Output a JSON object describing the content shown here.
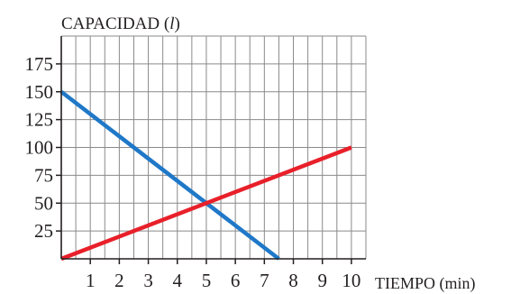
{
  "chart_data": {
    "type": "line",
    "ylabel": "CAPACIDAD (l)",
    "ylabel_prefix": "CAPACIDAD (",
    "ylabel_unit": "l",
    "ylabel_suffix": ")",
    "xlabel": "TIEMPO (min)",
    "xlim": [
      0,
      10.5
    ],
    "ylim": [
      0,
      200
    ],
    "x_ticks": [
      1,
      2,
      3,
      4,
      5,
      6,
      7,
      8,
      9,
      10
    ],
    "y_ticks": [
      25,
      50,
      75,
      100,
      125,
      150,
      175
    ],
    "grid_x": [
      0.5,
      1,
      1.5,
      2,
      2.5,
      3,
      3.5,
      4,
      4.5,
      5,
      5.5,
      6,
      6.5,
      7,
      7.5,
      8,
      8.5,
      9,
      9.5,
      10,
      10.5
    ],
    "grid_y": [
      25,
      50,
      75,
      100,
      125,
      150,
      175,
      200
    ],
    "grid": true,
    "series": [
      {
        "color": "#1f78c8",
        "points": [
          [
            0,
            150
          ],
          [
            7.5,
            0
          ]
        ]
      },
      {
        "color": "#e8202a",
        "points": [
          [
            0,
            0
          ],
          [
            10,
            100
          ]
        ]
      }
    ]
  },
  "colors": {
    "axis": "#231f20",
    "grid": "#8a8a8a"
  }
}
